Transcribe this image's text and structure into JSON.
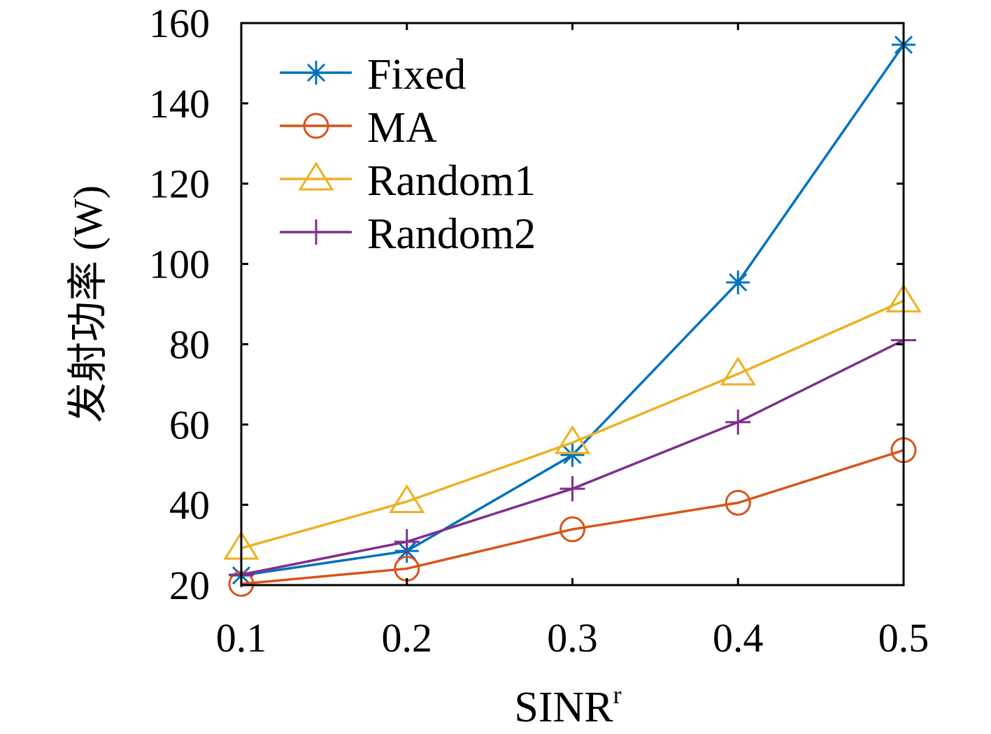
{
  "chart_data": {
    "type": "line",
    "title": "",
    "xlabel": "SINR",
    "xlabel_superscript": "r",
    "ylabel": "发射功率 (W)",
    "xlim": [
      0.1,
      0.5
    ],
    "ylim": [
      20,
      160
    ],
    "xticks": [
      "0.1",
      "0.2",
      "0.3",
      "0.4",
      "0.5"
    ],
    "yticks": [
      "20",
      "40",
      "60",
      "80",
      "100",
      "120",
      "140",
      "160"
    ],
    "grid": false,
    "legend_position": "top-left",
    "x": [
      0.1,
      0.2,
      0.3,
      0.4,
      0.5
    ],
    "series": [
      {
        "name": "Fixed",
        "color": "#0072BD",
        "marker": "asterisk",
        "values": [
          22.4,
          28.5,
          52.4,
          95.4,
          154.6
        ]
      },
      {
        "name": "MA",
        "color": "#D95319",
        "marker": "circle",
        "values": [
          20.3,
          24.1,
          33.9,
          40.5,
          53.6
        ]
      },
      {
        "name": "Random1",
        "color": "#EDB120",
        "marker": "triangle",
        "values": [
          29.2,
          40.8,
          55.5,
          72.6,
          90.8
        ]
      },
      {
        "name": "Random2",
        "color": "#7E2F8E",
        "marker": "plus",
        "values": [
          22.6,
          30.8,
          44.0,
          60.6,
          81.0
        ]
      }
    ]
  }
}
